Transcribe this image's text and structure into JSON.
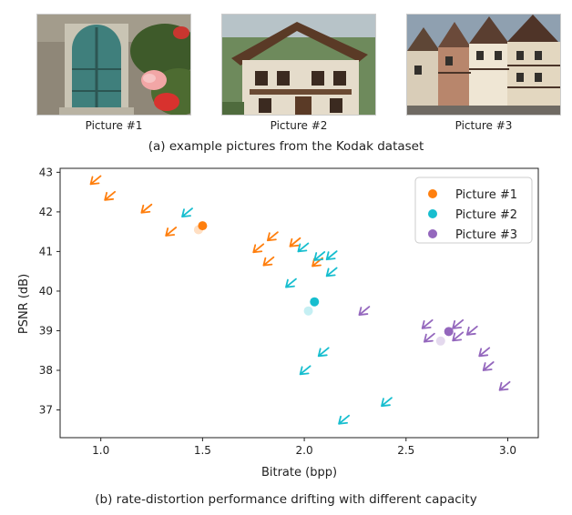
{
  "pictures": [
    {
      "caption": "Picture #1",
      "scene": "window-with-hibiscus"
    },
    {
      "caption": "Picture #2",
      "scene": "painted-alpine-house"
    },
    {
      "caption": "Picture #3",
      "scene": "half-timbered-street"
    }
  ],
  "top_caption": "(a) example pictures from the Kodak dataset",
  "bottom_caption": "(b) rate-distortion performance drifting with different capacity",
  "chart_data": {
    "type": "scatter",
    "xlabel": "Bitrate (bpp)",
    "ylabel": "PSNR (dB)",
    "xlim": [
      0.8,
      3.15
    ],
    "ylim": [
      36.3,
      43.1
    ],
    "xticks": [
      "1.0",
      "1.5",
      "2.0",
      "2.5",
      "3.0"
    ],
    "yticks": [
      "37",
      "38",
      "39",
      "40",
      "41",
      "42",
      "43"
    ],
    "legend_position": "top-right",
    "series": [
      {
        "name": "Picture #1",
        "color": "#ff7f0e",
        "point": [
          1.5,
          41.65
        ],
        "faded_point": [
          1.48,
          41.55
        ],
        "arrows": [
          [
            0.95,
            42.7
          ],
          [
            1.02,
            42.3
          ],
          [
            1.2,
            41.98
          ],
          [
            1.32,
            41.4
          ],
          [
            1.75,
            40.98
          ],
          [
            1.8,
            40.65
          ],
          [
            1.82,
            41.28
          ],
          [
            1.93,
            41.13
          ],
          [
            2.04,
            40.63
          ]
        ]
      },
      {
        "name": "Picture #2",
        "color": "#17becf",
        "point": [
          2.05,
          39.73
        ],
        "faded_point": [
          2.02,
          39.5
        ],
        "arrows": [
          [
            1.4,
            41.88
          ],
          [
            1.97,
            41.0
          ],
          [
            2.05,
            40.78
          ],
          [
            2.11,
            40.8
          ],
          [
            2.11,
            40.38
          ],
          [
            1.91,
            40.1
          ],
          [
            2.07,
            38.36
          ],
          [
            1.98,
            37.9
          ],
          [
            2.17,
            36.65
          ],
          [
            2.38,
            37.1
          ]
        ]
      },
      {
        "name": "Picture #3",
        "color": "#9467bd",
        "point": [
          2.71,
          38.98
        ],
        "faded_point": [
          2.67,
          38.74
        ],
        "arrows": [
          [
            2.27,
            39.4
          ],
          [
            2.58,
            39.06
          ],
          [
            2.59,
            38.72
          ],
          [
            2.73,
            39.06
          ],
          [
            2.73,
            38.75
          ],
          [
            2.8,
            38.9
          ],
          [
            2.86,
            38.36
          ],
          [
            2.88,
            38.0
          ],
          [
            2.96,
            37.5
          ]
        ]
      }
    ]
  }
}
